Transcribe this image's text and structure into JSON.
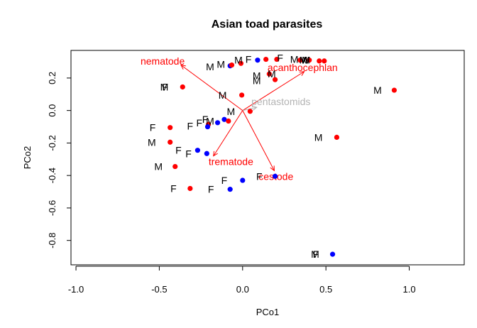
{
  "chart_data": {
    "type": "scatter",
    "title": "Asian toad parasites",
    "xlabel": "PCo1",
    "ylabel": "PCo2",
    "xlim": [
      -1.03,
      1.33
    ],
    "ylim": [
      -0.95,
      0.37
    ],
    "xticks": [
      -1.0,
      -0.5,
      0.0,
      0.5,
      1.0
    ],
    "xtick_labels": [
      "-1.0",
      "-0.5",
      "0.0",
      "0.5",
      "1.0"
    ],
    "yticks": [
      -0.8,
      -0.6,
      -0.4,
      -0.2,
      0.0,
      0.2
    ],
    "ytick_labels": [
      "-0.8",
      "-0.6",
      "-0.4",
      "-0.2",
      "0.0",
      "0.2"
    ],
    "grid": false,
    "point_colors": {
      "red": "#ff0000",
      "blue": "#0000ff"
    },
    "vector_colors": {
      "main": "#ff0000",
      "faded": "#b3b3b3"
    },
    "points": [
      {
        "x": -0.075,
        "y": 0.275,
        "color": "blue"
      },
      {
        "x": -0.065,
        "y": 0.28,
        "color": "red"
      },
      {
        "x": -0.01,
        "y": 0.29,
        "color": "red"
      },
      {
        "x": 0.09,
        "y": 0.31,
        "color": "blue"
      },
      {
        "x": 0.14,
        "y": 0.315,
        "color": "red"
      },
      {
        "x": 0.205,
        "y": 0.315,
        "color": "red"
      },
      {
        "x": 0.345,
        "y": 0.31,
        "color": "red"
      },
      {
        "x": 0.4,
        "y": 0.31,
        "color": "red"
      },
      {
        "x": 0.46,
        "y": 0.305,
        "color": "red"
      },
      {
        "x": 0.49,
        "y": 0.305,
        "color": "red"
      },
      {
        "x": 0.16,
        "y": 0.225,
        "color": "red"
      },
      {
        "x": 0.195,
        "y": 0.19,
        "color": "red"
      },
      {
        "x": -0.36,
        "y": 0.145,
        "color": "red"
      },
      {
        "x": -0.005,
        "y": 0.095,
        "color": "red"
      },
      {
        "x": 0.91,
        "y": 0.125,
        "color": "red"
      },
      {
        "x": 0.045,
        "y": -0.005,
        "color": "red"
      },
      {
        "x": -0.11,
        "y": -0.055,
        "color": "blue"
      },
      {
        "x": -0.085,
        "y": -0.065,
        "color": "red"
      },
      {
        "x": -0.15,
        "y": -0.075,
        "color": "blue"
      },
      {
        "x": -0.205,
        "y": -0.085,
        "color": "red"
      },
      {
        "x": -0.21,
        "y": -0.1,
        "color": "blue"
      },
      {
        "x": -0.435,
        "y": -0.105,
        "color": "red"
      },
      {
        "x": 0.565,
        "y": -0.165,
        "color": "red"
      },
      {
        "x": -0.435,
        "y": -0.195,
        "color": "red"
      },
      {
        "x": -0.27,
        "y": -0.245,
        "color": "blue"
      },
      {
        "x": -0.215,
        "y": -0.265,
        "color": "blue"
      },
      {
        "x": -0.405,
        "y": -0.345,
        "color": "red"
      },
      {
        "x": 0.195,
        "y": -0.405,
        "color": "blue"
      },
      {
        "x": 0.0,
        "y": -0.43,
        "color": "blue"
      },
      {
        "x": -0.315,
        "y": -0.48,
        "color": "red"
      },
      {
        "x": -0.075,
        "y": -0.485,
        "color": "blue"
      },
      {
        "x": 0.54,
        "y": -0.885,
        "color": "blue"
      }
    ],
    "labels": [
      {
        "text": "M",
        "x": -0.195,
        "y": 0.27
      },
      {
        "text": "M",
        "x": -0.13,
        "y": 0.285
      },
      {
        "text": "M",
        "x": -0.025,
        "y": 0.31
      },
      {
        "text": "F",
        "x": 0.035,
        "y": 0.315
      },
      {
        "text": "F",
        "x": 0.225,
        "y": 0.325
      },
      {
        "text": "M",
        "x": 0.31,
        "y": 0.315
      },
      {
        "text": "M",
        "x": 0.365,
        "y": 0.31
      },
      {
        "text": "W",
        "x": 0.375,
        "y": 0.31
      },
      {
        "text": "M",
        "x": 0.38,
        "y": 0.31
      },
      {
        "text": "M",
        "x": 0.175,
        "y": 0.225
      },
      {
        "text": "M",
        "x": 0.085,
        "y": 0.215
      },
      {
        "text": "M",
        "x": 0.085,
        "y": 0.185
      },
      {
        "text": "M",
        "x": -0.47,
        "y": 0.145
      },
      {
        "text": "F",
        "x": -0.465,
        "y": 0.145
      },
      {
        "text": "M",
        "x": -0.12,
        "y": 0.095
      },
      {
        "text": "M",
        "x": 0.81,
        "y": 0.125
      },
      {
        "text": "M",
        "x": -0.07,
        "y": -0.005
      },
      {
        "text": "F",
        "x": -0.225,
        "y": -0.055
      },
      {
        "text": "M",
        "x": -0.195,
        "y": -0.065
      },
      {
        "text": "F",
        "x": -0.26,
        "y": -0.075
      },
      {
        "text": "F",
        "x": -0.315,
        "y": -0.095
      },
      {
        "text": "F",
        "x": -0.54,
        "y": -0.105
      },
      {
        "text": "M",
        "x": 0.455,
        "y": -0.165
      },
      {
        "text": "M",
        "x": -0.545,
        "y": -0.195
      },
      {
        "text": "F",
        "x": -0.385,
        "y": -0.245
      },
      {
        "text": "F",
        "x": -0.325,
        "y": -0.265
      },
      {
        "text": "M",
        "x": -0.505,
        "y": -0.345
      },
      {
        "text": "F",
        "x": 0.1,
        "y": -0.405
      },
      {
        "text": "F",
        "x": -0.11,
        "y": -0.43
      },
      {
        "text": "F",
        "x": -0.415,
        "y": -0.48
      },
      {
        "text": "F",
        "x": -0.19,
        "y": -0.485
      },
      {
        "text": "M",
        "x": 0.435,
        "y": -0.885
      },
      {
        "text": "F",
        "x": 0.44,
        "y": -0.885
      }
    ],
    "vectors": [
      {
        "name": "nematode",
        "x": -0.37,
        "y": 0.28,
        "label_x": -0.48,
        "label_y": 0.305,
        "color": "main"
      },
      {
        "name": "acanthocephlan",
        "x": 0.37,
        "y": 0.24,
        "label_x": 0.36,
        "label_y": 0.265,
        "color": "main"
      },
      {
        "name": "pentastomids",
        "x": 0.085,
        "y": 0.02,
        "label_x": 0.23,
        "label_y": 0.055,
        "color": "faded"
      },
      {
        "name": "trematode",
        "x": -0.175,
        "y": -0.28,
        "label_x": -0.07,
        "label_y": -0.315,
        "color": "main"
      },
      {
        "name": "cestode",
        "x": 0.19,
        "y": -0.37,
        "label_x": 0.2,
        "label_y": -0.405,
        "color": "main"
      }
    ]
  }
}
